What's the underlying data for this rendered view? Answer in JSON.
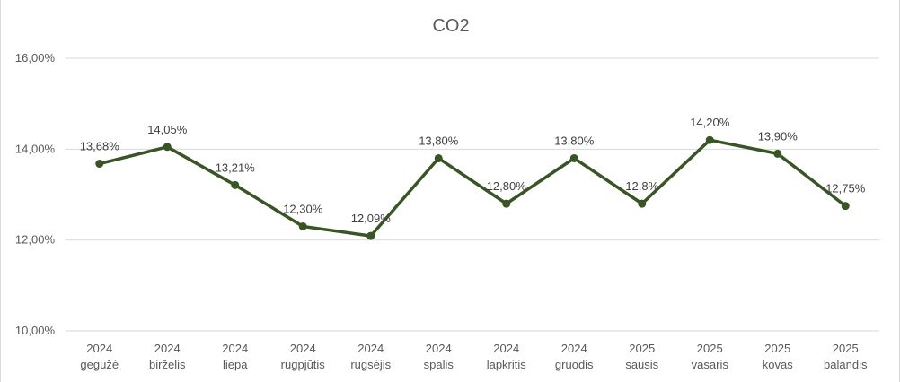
{
  "chart_data": {
    "type": "line",
    "title": "CO2",
    "xlabel": "",
    "ylabel": "",
    "ylim": [
      10,
      16
    ],
    "y_ticks": [
      "10,00%",
      "12,00%",
      "14,00%",
      "16,00%"
    ],
    "y_tick_values": [
      10,
      12,
      14,
      16
    ],
    "grid": true,
    "legend": "none",
    "line_color": "#375623",
    "categories": [
      {
        "year": "2024",
        "month": "gegužė"
      },
      {
        "year": "2024",
        "month": "birželis"
      },
      {
        "year": "2024",
        "month": "liepa"
      },
      {
        "year": "2024",
        "month": "rugpjūtis"
      },
      {
        "year": "2024",
        "month": "rugsėjis"
      },
      {
        "year": "2024",
        "month": "spalis"
      },
      {
        "year": "2024",
        "month": "lapkritis"
      },
      {
        "year": "2024",
        "month": "gruodis"
      },
      {
        "year": "2025",
        "month": "sausis"
      },
      {
        "year": "2025",
        "month": "vasaris"
      },
      {
        "year": "2025",
        "month": "kovas"
      },
      {
        "year": "2025",
        "month": "balandis"
      }
    ],
    "series": [
      {
        "values": [
          13.68,
          14.05,
          13.21,
          12.3,
          12.09,
          13.8,
          12.8,
          13.8,
          12.8,
          14.2,
          13.9,
          12.75
        ],
        "labels": [
          "13,68%",
          "14,05%",
          "13,21%",
          "12,30%",
          "12,09%",
          "13,80%",
          "12,80%",
          "13,80%",
          "12,8%",
          "14,20%",
          "13,90%",
          "12,75%"
        ]
      }
    ]
  }
}
